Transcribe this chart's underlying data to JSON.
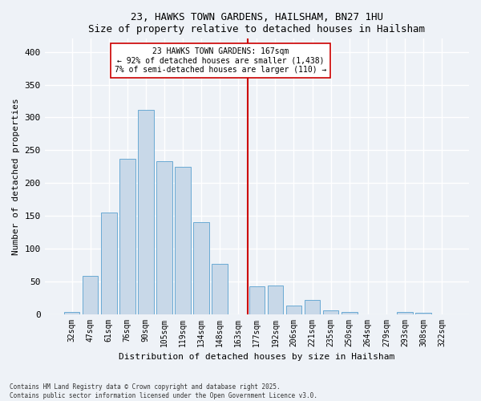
{
  "title1": "23, HAWKS TOWN GARDENS, HAILSHAM, BN27 1HU",
  "title2": "Size of property relative to detached houses in Hailsham",
  "xlabel": "Distribution of detached houses by size in Hailsham",
  "ylabel": "Number of detached properties",
  "footer": "Contains HM Land Registry data © Crown copyright and database right 2025.\nContains public sector information licensed under the Open Government Licence v3.0.",
  "bar_labels": [
    "32sqm",
    "47sqm",
    "61sqm",
    "76sqm",
    "90sqm",
    "105sqm",
    "119sqm",
    "134sqm",
    "148sqm",
    "163sqm",
    "177sqm",
    "192sqm",
    "206sqm",
    "221sqm",
    "235sqm",
    "250sqm",
    "264sqm",
    "279sqm",
    "293sqm",
    "308sqm",
    "322sqm"
  ],
  "bar_values": [
    3,
    58,
    155,
    237,
    312,
    233,
    225,
    140,
    76,
    0,
    42,
    44,
    13,
    21,
    6,
    3,
    0,
    0,
    3,
    2,
    0
  ],
  "bar_color": "#c8d8e8",
  "bar_edge_color": "#6aaad4",
  "property_label": "23 HAWKS TOWN GARDENS: 167sqm",
  "annotation_line1": "← 92% of detached houses are smaller (1,438)",
  "annotation_line2": "7% of semi-detached houses are larger (110) →",
  "vline_color": "#cc0000",
  "vline_x_index": 9.5,
  "ylim": [
    0,
    420
  ],
  "yticks": [
    0,
    50,
    100,
    150,
    200,
    250,
    300,
    350,
    400
  ],
  "background_color": "#eef2f7",
  "grid_color": "#ffffff"
}
